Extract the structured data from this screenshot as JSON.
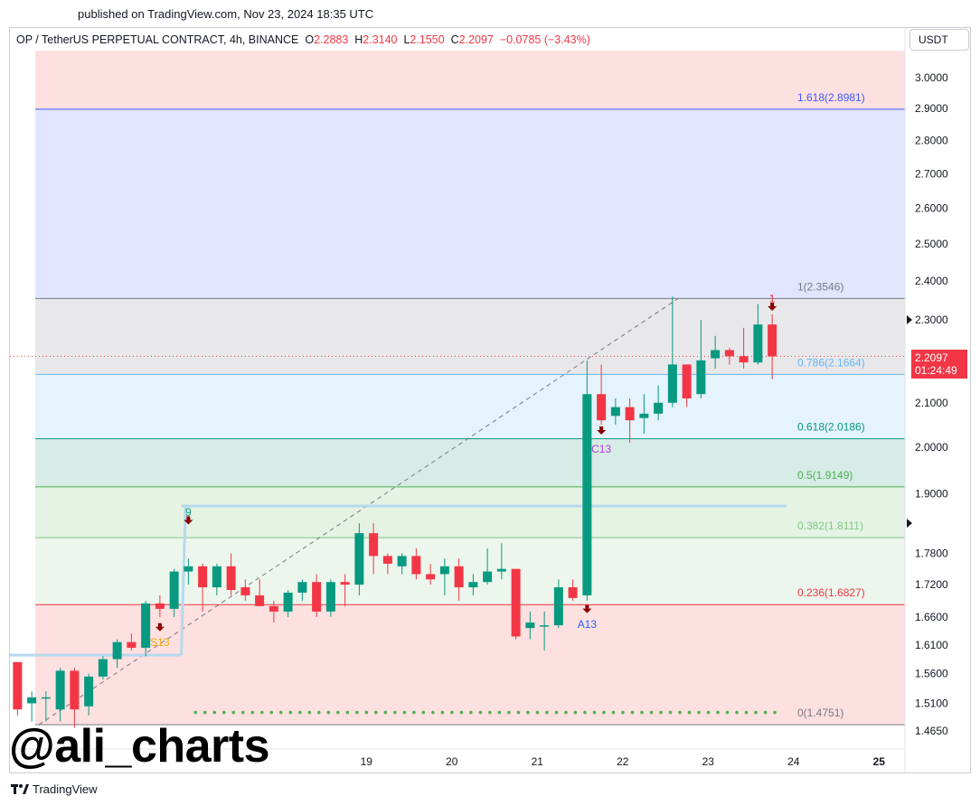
{
  "header": {
    "published": "published on TradingView.com, Nov 23, 2024 18:35 UTC"
  },
  "legend": {
    "symbol": "OP / TetherUS PERPETUAL CONTRACT, 4h, BINANCE",
    "o_label": "O",
    "o_value": "2.2883",
    "h_label": "H",
    "h_value": "2.3140",
    "l_label": "L",
    "l_value": "2.1550",
    "c_label": "C",
    "c_value": "2.2097",
    "change": "−0.0785 (−3.43%)"
  },
  "currency_button": "USDT",
  "price_tag": {
    "price": "2.2097",
    "countdown": "01:24:49"
  },
  "watermark": "@ali_charts",
  "footer": {
    "brand": "TradingView"
  },
  "colors": {
    "up": "#089981",
    "down": "#f23645",
    "fib_top_fill": "#fde0e0",
    "fib_1618_fill": "#e1e5fd",
    "fib_1_fill": "#e8e8ea",
    "fib_0786_fill": "#e4f3fc",
    "fib_0618_fill": "#d7ece6",
    "fib_05_fill": "#e4f3e4",
    "fib_0382_fill": "#ecf6ec",
    "fib_0236_fill": "#fde0e0"
  },
  "chart_data": {
    "type": "candlestick",
    "title": "OP / TetherUS PERPETUAL CONTRACT, 4h, BINANCE",
    "ylim": [
      1.465,
      3.06
    ],
    "y_scale": "log",
    "y_ticks": [
      "3.0000",
      "2.9000",
      "2.8000",
      "2.7000",
      "2.6000",
      "2.5000",
      "2.4000",
      "2.3000",
      "2.1000",
      "2.0000",
      "1.9000",
      "1.7800",
      "1.7200",
      "1.6600",
      "1.6100",
      "1.5600",
      "1.5100",
      "1.4650"
    ],
    "y_marked": [
      "2.3000",
      "1.8400"
    ],
    "x_ticks": [
      {
        "label": "19",
        "bar": 24.5,
        "bold": false
      },
      {
        "label": "20",
        "bar": 30.5,
        "bold": false
      },
      {
        "label": "21",
        "bar": 36.5,
        "bold": false
      },
      {
        "label": "22",
        "bar": 42.5,
        "bold": false
      },
      {
        "label": "23",
        "bar": 48.5,
        "bold": false
      },
      {
        "label": "24",
        "bar": 54.5,
        "bold": false
      },
      {
        "label": "25",
        "bar": 60.5,
        "bold": true
      }
    ],
    "bars_visible": 63,
    "first_bar_offset": -0.5,
    "fib_levels": [
      {
        "ratio": "1.618",
        "price": 2.8981,
        "label": "1.618(2.8981)",
        "color": "#3d5afe"
      },
      {
        "ratio": "1",
        "price": 2.3546,
        "label": "1(2.3546)",
        "color": "#787b86"
      },
      {
        "ratio": "0.786",
        "price": 2.1664,
        "label": "0.786(2.1664)",
        "color": "#64b5f6"
      },
      {
        "ratio": "0.618",
        "price": 2.0186,
        "label": "0.618(2.0186)",
        "color": "#089981"
      },
      {
        "ratio": "0.5",
        "price": 1.9149,
        "label": "0.5(1.9149)",
        "color": "#4caf50"
      },
      {
        "ratio": "0.382",
        "price": 1.8111,
        "label": "0.382(1.8111)",
        "color": "#81c784"
      },
      {
        "ratio": "0.236",
        "price": 1.6827,
        "label": "0.236(1.6827)",
        "color": "#f23645"
      },
      {
        "ratio": "0",
        "price": 1.4751,
        "label": "0(1.4751)",
        "color": "#787b86"
      }
    ],
    "candles": [
      {
        "o": 1.58,
        "h": 1.58,
        "l": 1.49,
        "c": 1.5
      },
      {
        "o": 1.51,
        "h": 1.53,
        "l": 1.48,
        "c": 1.52
      },
      {
        "o": 1.52,
        "h": 1.53,
        "l": 1.48,
        "c": 1.52
      },
      {
        "o": 1.5,
        "h": 1.57,
        "l": 1.48,
        "c": 1.565
      },
      {
        "o": 1.565,
        "h": 1.57,
        "l": 1.47,
        "c": 1.5
      },
      {
        "o": 1.505,
        "h": 1.56,
        "l": 1.49,
        "c": 1.555
      },
      {
        "o": 1.555,
        "h": 1.59,
        "l": 1.55,
        "c": 1.585
      },
      {
        "o": 1.585,
        "h": 1.62,
        "l": 1.57,
        "c": 1.615
      },
      {
        "o": 1.615,
        "h": 1.63,
        "l": 1.6,
        "c": 1.605
      },
      {
        "o": 1.605,
        "h": 1.69,
        "l": 1.59,
        "c": 1.685
      },
      {
        "o": 1.685,
        "h": 1.7,
        "l": 1.66,
        "c": 1.675
      },
      {
        "o": 1.675,
        "h": 1.75,
        "l": 1.66,
        "c": 1.745
      },
      {
        "o": 1.745,
        "h": 1.77,
        "l": 1.72,
        "c": 1.755
      },
      {
        "o": 1.755,
        "h": 1.76,
        "l": 1.67,
        "c": 1.715
      },
      {
        "o": 1.715,
        "h": 1.76,
        "l": 1.7,
        "c": 1.755
      },
      {
        "o": 1.755,
        "h": 1.78,
        "l": 1.7,
        "c": 1.71
      },
      {
        "o": 1.715,
        "h": 1.73,
        "l": 1.69,
        "c": 1.7
      },
      {
        "o": 1.7,
        "h": 1.73,
        "l": 1.68,
        "c": 1.68
      },
      {
        "o": 1.68,
        "h": 1.69,
        "l": 1.65,
        "c": 1.67
      },
      {
        "o": 1.67,
        "h": 1.71,
        "l": 1.66,
        "c": 1.705
      },
      {
        "o": 1.705,
        "h": 1.73,
        "l": 1.69,
        "c": 1.725
      },
      {
        "o": 1.725,
        "h": 1.74,
        "l": 1.66,
        "c": 1.67
      },
      {
        "o": 1.67,
        "h": 1.73,
        "l": 1.66,
        "c": 1.725
      },
      {
        "o": 1.725,
        "h": 1.74,
        "l": 1.68,
        "c": 1.72
      },
      {
        "o": 1.72,
        "h": 1.84,
        "l": 1.7,
        "c": 1.82
      },
      {
        "o": 1.82,
        "h": 1.84,
        "l": 1.74,
        "c": 1.775
      },
      {
        "o": 1.775,
        "h": 1.78,
        "l": 1.74,
        "c": 1.76
      },
      {
        "o": 1.755,
        "h": 1.78,
        "l": 1.74,
        "c": 1.775
      },
      {
        "o": 1.775,
        "h": 1.79,
        "l": 1.73,
        "c": 1.74
      },
      {
        "o": 1.74,
        "h": 1.76,
        "l": 1.72,
        "c": 1.73
      },
      {
        "o": 1.74,
        "h": 1.77,
        "l": 1.7,
        "c": 1.755
      },
      {
        "o": 1.755,
        "h": 1.77,
        "l": 1.69,
        "c": 1.715
      },
      {
        "o": 1.715,
        "h": 1.74,
        "l": 1.7,
        "c": 1.725
      },
      {
        "o": 1.725,
        "h": 1.79,
        "l": 1.72,
        "c": 1.745
      },
      {
        "o": 1.745,
        "h": 1.8,
        "l": 1.73,
        "c": 1.75
      },
      {
        "o": 1.75,
        "h": 1.75,
        "l": 1.62,
        "c": 1.625
      },
      {
        "o": 1.64,
        "h": 1.67,
        "l": 1.62,
        "c": 1.65
      },
      {
        "o": 1.645,
        "h": 1.67,
        "l": 1.6,
        "c": 1.645
      },
      {
        "o": 1.645,
        "h": 1.73,
        "l": 1.64,
        "c": 1.715
      },
      {
        "o": 1.715,
        "h": 1.73,
        "l": 1.69,
        "c": 1.695
      },
      {
        "o": 1.7,
        "h": 2.2,
        "l": 1.69,
        "c": 2.12
      },
      {
        "o": 2.12,
        "h": 2.19,
        "l": 2.05,
        "c": 2.06
      },
      {
        "o": 2.07,
        "h": 2.11,
        "l": 2.05,
        "c": 2.09
      },
      {
        "o": 2.09,
        "h": 2.11,
        "l": 2.01,
        "c": 2.06
      },
      {
        "o": 2.065,
        "h": 2.12,
        "l": 2.03,
        "c": 2.075
      },
      {
        "o": 2.075,
        "h": 2.14,
        "l": 2.06,
        "c": 2.1
      },
      {
        "o": 2.1,
        "h": 2.36,
        "l": 2.09,
        "c": 2.19
      },
      {
        "o": 2.19,
        "h": 2.19,
        "l": 2.09,
        "c": 2.11
      },
      {
        "o": 2.12,
        "h": 2.3,
        "l": 2.11,
        "c": 2.2
      },
      {
        "o": 2.205,
        "h": 2.26,
        "l": 2.18,
        "c": 2.225
      },
      {
        "o": 2.225,
        "h": 2.23,
        "l": 2.19,
        "c": 2.21
      },
      {
        "o": 2.21,
        "h": 2.28,
        "l": 2.18,
        "c": 2.195
      },
      {
        "o": 2.195,
        "h": 2.34,
        "l": 2.19,
        "c": 2.2883
      },
      {
        "o": 2.2883,
        "h": 2.314,
        "l": 2.155,
        "c": 2.2097
      }
    ],
    "annotations": [
      {
        "text": "9",
        "bar": 12,
        "price": 1.855,
        "color": "#089981"
      },
      {
        "text": "S13",
        "bar": 10,
        "price": 1.608,
        "color": "#f7a600"
      },
      {
        "text": "C13",
        "bar": 41,
        "price": 1.988,
        "color": "#b23ee0"
      },
      {
        "text": "A13",
        "bar": 40,
        "price": 1.64,
        "color": "#2962ff"
      },
      {
        "text": "1",
        "bar": 53,
        "price": 2.345,
        "color": "#f23645"
      }
    ],
    "down_arrows": [
      {
        "bar": 12,
        "price": 1.843
      },
      {
        "bar": 10,
        "price": 1.639
      },
      {
        "bar": 41,
        "price": 2.034
      },
      {
        "bar": 40,
        "price": 1.672
      },
      {
        "bar": 53,
        "price": 2.33
      }
    ],
    "resistance_lines": [
      {
        "price": 1.875,
        "from_bar": 12,
        "to_bar": 54
      },
      {
        "price": 1.592,
        "from_bar": -0.5,
        "to_bar": 11.5
      }
    ],
    "trend_line": {
      "from_bar": 1.5,
      "from_price": 1.4751,
      "to_bar": 46.4,
      "to_price": 2.3546
    },
    "current_price": 2.2097,
    "dots_price": 1.495,
    "dots_from_bar": 12.5,
    "dots_to_bar": 53.5
  }
}
